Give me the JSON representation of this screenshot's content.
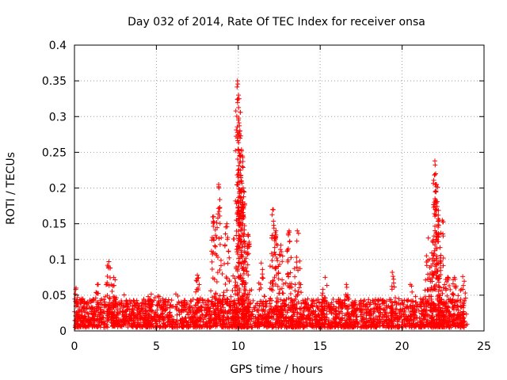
{
  "chart_data": {
    "type": "scatter",
    "title": "Day 032 of 2014, Rate Of TEC Index for receiver onsa",
    "xlabel": "GPS time / hours",
    "ylabel": "ROTI / TECUs",
    "xlim": [
      0,
      25
    ],
    "ylim": [
      0,
      0.4
    ],
    "grid": true,
    "marker": "+",
    "series_color": "#ff0000",
    "xticks": [
      0,
      5,
      10,
      15,
      20,
      25
    ],
    "xtick_labels": [
      "0",
      "5",
      "10",
      "15",
      "20",
      "25"
    ],
    "yticks": [
      0,
      0.05,
      0.1,
      0.15,
      0.2,
      0.25,
      0.3,
      0.35,
      0.4
    ],
    "ytick_labels": [
      "0",
      "0.05",
      "0.1",
      "0.15",
      "0.2",
      "0.25",
      "0.3",
      "0.35",
      "0.4"
    ],
    "data_range": {
      "x_start": 0,
      "x_end": 23.8
    },
    "baseline": {
      "low": 0.005,
      "high": 0.045
    },
    "peaks": [
      {
        "x": 0.1,
        "y": 0.06
      },
      {
        "x": 1.4,
        "y": 0.065
      },
      {
        "x": 2.1,
        "y": 0.097
      },
      {
        "x": 2.4,
        "y": 0.075
      },
      {
        "x": 4.5,
        "y": 0.048
      },
      {
        "x": 7.5,
        "y": 0.078
      },
      {
        "x": 8.5,
        "y": 0.16
      },
      {
        "x": 8.8,
        "y": 0.205
      },
      {
        "x": 9.3,
        "y": 0.15
      },
      {
        "x": 9.95,
        "y": 0.35
      },
      {
        "x": 10.05,
        "y": 0.325
      },
      {
        "x": 10.1,
        "y": 0.28
      },
      {
        "x": 10.2,
        "y": 0.252
      },
      {
        "x": 10.25,
        "y": 0.23
      },
      {
        "x": 10.3,
        "y": 0.2
      },
      {
        "x": 10.6,
        "y": 0.135
      },
      {
        "x": 11.4,
        "y": 0.095
      },
      {
        "x": 12.1,
        "y": 0.17
      },
      {
        "x": 12.3,
        "y": 0.14
      },
      {
        "x": 12.6,
        "y": 0.12
      },
      {
        "x": 13.1,
        "y": 0.14
      },
      {
        "x": 13.6,
        "y": 0.14
      },
      {
        "x": 15.3,
        "y": 0.075
      },
      {
        "x": 16.6,
        "y": 0.065
      },
      {
        "x": 19.4,
        "y": 0.082
      },
      {
        "x": 20.5,
        "y": 0.065
      },
      {
        "x": 21.6,
        "y": 0.13
      },
      {
        "x": 22.0,
        "y": 0.238
      },
      {
        "x": 22.05,
        "y": 0.22
      },
      {
        "x": 22.1,
        "y": 0.205
      },
      {
        "x": 22.2,
        "y": 0.157
      },
      {
        "x": 22.45,
        "y": 0.155
      },
      {
        "x": 22.8,
        "y": 0.075
      },
      {
        "x": 23.2,
        "y": 0.075
      },
      {
        "x": 23.7,
        "y": 0.076
      }
    ]
  }
}
